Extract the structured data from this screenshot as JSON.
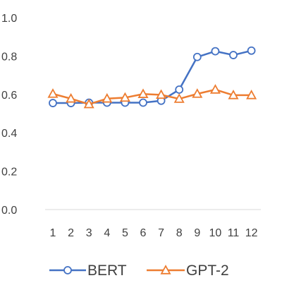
{
  "chart_data": {
    "type": "line",
    "title": "",
    "xlabel": "",
    "ylabel": "",
    "categories": [
      "1",
      "2",
      "3",
      "4",
      "5",
      "6",
      "7",
      "8",
      "9",
      "10",
      "11",
      "12"
    ],
    "ylim": [
      0.0,
      1.0
    ],
    "yticks": [
      "0.0",
      "0.2",
      "0.4",
      "0.6",
      "0.8",
      "1.0"
    ],
    "grid": false,
    "legend_position": "bottom",
    "series": [
      {
        "name": "BERT",
        "color": "#4472C4",
        "marker": "circle",
        "values": [
          0.555,
          0.555,
          0.557,
          0.557,
          0.557,
          0.557,
          0.567,
          0.625,
          0.795,
          0.825,
          0.805,
          0.828
        ]
      },
      {
        "name": "GPT-2",
        "color": "#ED7D31",
        "marker": "triangle",
        "values": [
          0.603,
          0.578,
          0.549,
          0.578,
          0.583,
          0.602,
          0.598,
          0.577,
          0.603,
          0.625,
          0.596,
          0.596
        ]
      }
    ]
  }
}
